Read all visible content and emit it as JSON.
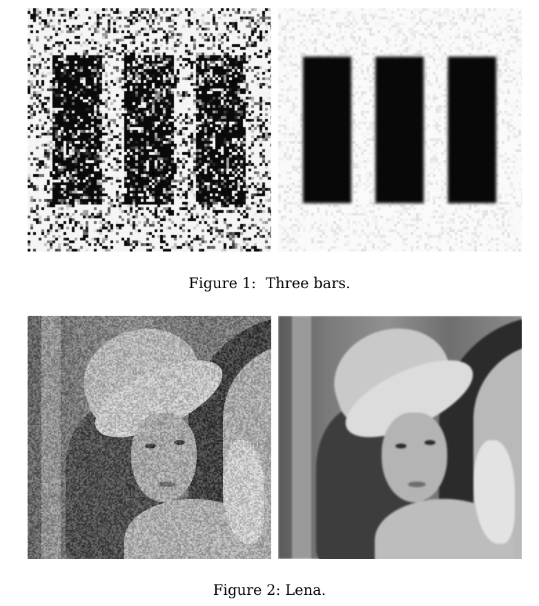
{
  "figures": [
    {
      "label": "Figure 1:",
      "caption": "Three bars.",
      "panels": [
        "noisy-image",
        "denoised-image"
      ]
    },
    {
      "label": "Figure 2:",
      "caption": "Lena.",
      "panels": [
        "noisy-image",
        "denoised-image"
      ]
    }
  ]
}
